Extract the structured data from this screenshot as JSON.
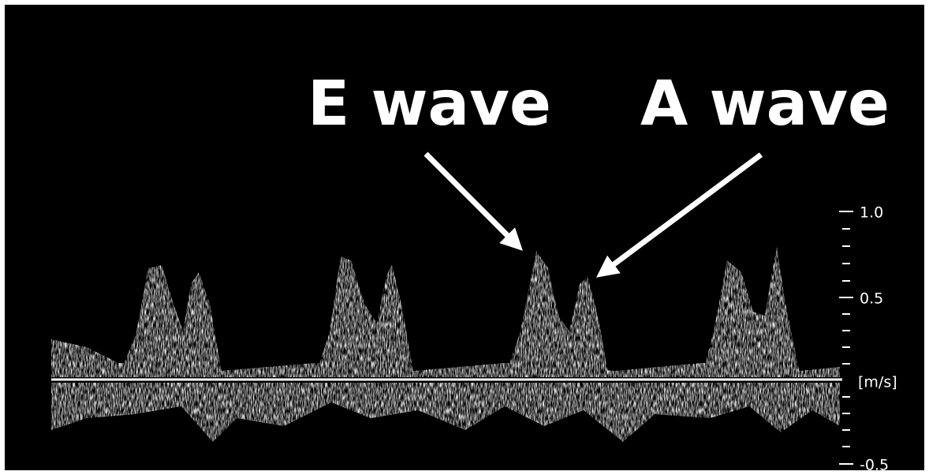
{
  "annotations": [
    {
      "label": "E wave"
    },
    {
      "label": "A wave"
    }
  ],
  "scale": {
    "ticks": [
      "1.0",
      "0.5",
      "[m/s]",
      "-0.5"
    ]
  }
}
